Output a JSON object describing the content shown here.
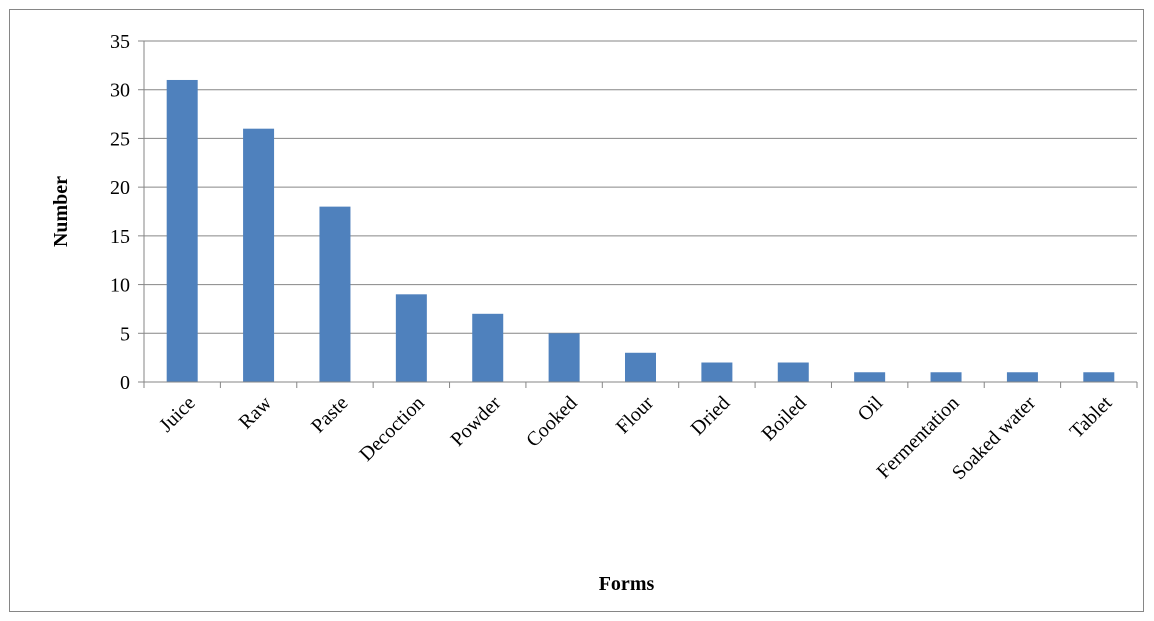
{
  "chart_data": {
    "type": "bar",
    "title": "",
    "xlabel": "Forms",
    "ylabel": "Number",
    "categories": [
      "Juice",
      "Raw",
      "Paste",
      "Decoction",
      "Powder",
      "Cooked",
      "Flour",
      "Dried",
      "Boiled",
      "Oil",
      "Fermentation",
      "Soaked water",
      "Tablet"
    ],
    "values": [
      31,
      26,
      18,
      9,
      7,
      5,
      3,
      2,
      2,
      1,
      1,
      1,
      1
    ],
    "ylim": [
      0,
      35
    ],
    "yticks": [
      "0",
      "5",
      "10",
      "15",
      "20",
      "25",
      "30",
      "35"
    ],
    "grid": true,
    "legend": "none",
    "bar_color": "#4F81BD",
    "gridline_color": "#868686"
  }
}
